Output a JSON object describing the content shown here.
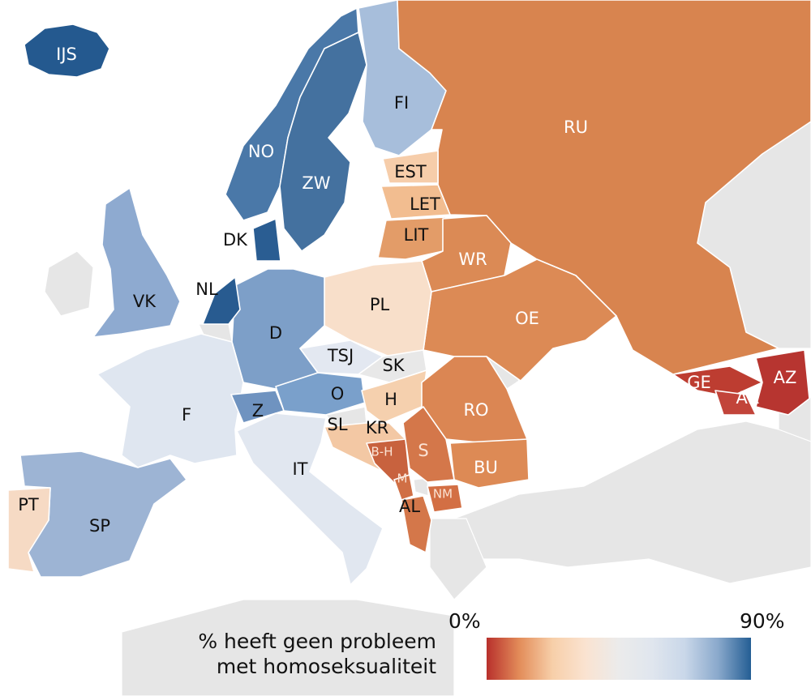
{
  "legend": {
    "title_line1": "% heeft geen probleem",
    "title_line2": "met homoseksualiteit",
    "min_label": "0%",
    "max_label": "90%",
    "min_value": 0,
    "max_value": 90,
    "gradient_colors": [
      "#b8302c",
      "#e38d5a",
      "#f7cfa9",
      "#fae3d1",
      "#ebebeb",
      "#e0e6ee",
      "#c9d7e9",
      "#8aa9cc",
      "#245e94"
    ]
  },
  "no_data_color": "#e6e6e6",
  "countries": [
    {
      "code": "IJS",
      "fill": "#24598f",
      "text_color": "#ffffff"
    },
    {
      "code": "NO",
      "fill": "#4a78a8",
      "text_color": "#ffffff"
    },
    {
      "code": "ZW",
      "fill": "#44719f",
      "text_color": "#ffffff"
    },
    {
      "code": "FI",
      "fill": "#a7bedb",
      "text_color": "#111111"
    },
    {
      "code": "RU",
      "fill": "#d8844f",
      "text_color": "#ffffff"
    },
    {
      "code": "EST",
      "fill": "#f6cdaa",
      "text_color": "#111111"
    },
    {
      "code": "LET",
      "fill": "#f2bd90",
      "text_color": "#111111"
    },
    {
      "code": "LIT",
      "fill": "#e39c68",
      "text_color": "#111111"
    },
    {
      "code": "WR",
      "fill": "#db8a55",
      "text_color": "#ffffff"
    },
    {
      "code": "OE",
      "fill": "#dc8a55",
      "text_color": "#ffffff"
    },
    {
      "code": "PL",
      "fill": "#f8dfca",
      "text_color": "#111111"
    },
    {
      "code": "D",
      "fill": "#7d9fc8",
      "text_color": "#111111"
    },
    {
      "code": "DK",
      "fill": "#2a5d92",
      "text_color": "#111111"
    },
    {
      "code": "NL",
      "fill": "#285b90",
      "text_color": "#111111"
    },
    {
      "code": "VK",
      "fill": "#8eaad0",
      "text_color": "#111111"
    },
    {
      "code": "F",
      "fill": "#dfe6f0",
      "text_color": "#111111"
    },
    {
      "code": "SP",
      "fill": "#9db4d4",
      "text_color": "#111111"
    },
    {
      "code": "PT",
      "fill": "#f6dac4",
      "text_color": "#111111"
    },
    {
      "code": "Z",
      "fill": "#6f93c0",
      "text_color": "#111111"
    },
    {
      "code": "O",
      "fill": "#7aa0cb",
      "text_color": "#111111"
    },
    {
      "code": "TSJ",
      "fill": "#e3e8f1",
      "text_color": "#111111"
    },
    {
      "code": "SK",
      "fill": "#e8e8e8",
      "text_color": "#111111"
    },
    {
      "code": "H",
      "fill": "#f5d0ae",
      "text_color": "#111111"
    },
    {
      "code": "RO",
      "fill": "#db8653",
      "text_color": "#ffffff"
    },
    {
      "code": "BU",
      "fill": "#dd8a55",
      "text_color": "#ffffff"
    },
    {
      "code": "SL",
      "fill": "#e6e6e6",
      "text_color": "#111111"
    },
    {
      "code": "KR",
      "fill": "#f3c8a4",
      "text_color": "#111111"
    },
    {
      "code": "B-H",
      "fill": "#c8623e",
      "text_color": "#fbe3d4"
    },
    {
      "code": "S",
      "fill": "#d4774a",
      "text_color": "#fbe3d4"
    },
    {
      "code": "M",
      "fill": "#d06f45",
      "text_color": "#fbe3d4"
    },
    {
      "code": "NM",
      "fill": "#d36f44",
      "text_color": "#fbe3d4"
    },
    {
      "code": "AL",
      "fill": "#d4774a",
      "text_color": "#111111"
    },
    {
      "code": "IT",
      "fill": "#e1e7f0",
      "text_color": "#111111"
    },
    {
      "code": "GE",
      "fill": "#bd3d31",
      "text_color": "#ffffff"
    },
    {
      "code": "AR",
      "fill": "#c2443a",
      "text_color": "#ffffff"
    },
    {
      "code": "AZ",
      "fill": "#b73530",
      "text_color": "#ffffff"
    }
  ]
}
